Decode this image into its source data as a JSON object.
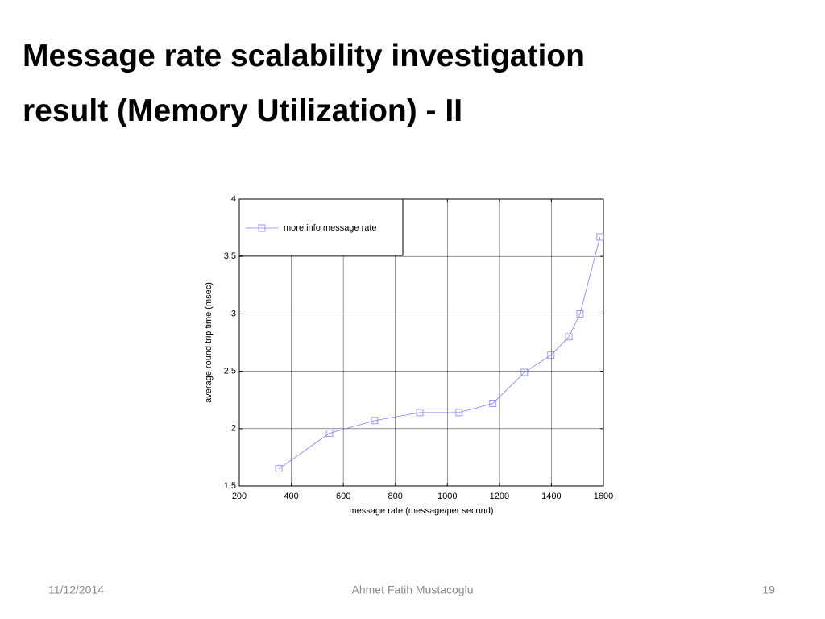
{
  "slide": {
    "title_lines": [
      "Message rate scalability investigation",
      "result (Memory Utilization) - II"
    ],
    "date": "11/12/2014",
    "author": "Ahmet Fatih Mustacoglu",
    "page": "19"
  },
  "chart_data": {
    "type": "line",
    "xlabel": "message rate (message/per second)",
    "ylabel": "average round trip time (msec)",
    "x": [
      352,
      547,
      720,
      894,
      1045,
      1175,
      1296,
      1398,
      1467,
      1510,
      1587
    ],
    "series": [
      {
        "name": "more info message rate",
        "color": "#8080ff",
        "marker": "square",
        "values": [
          1.65,
          1.96,
          2.07,
          2.14,
          2.14,
          2.22,
          2.49,
          2.64,
          2.8,
          3.0,
          3.67
        ]
      }
    ],
    "xlim": [
      200,
      1600
    ],
    "xticks": [
      200,
      400,
      600,
      800,
      1000,
      1200,
      1400,
      1600
    ],
    "ylim": [
      1.5,
      4
    ],
    "yticks": [
      1.5,
      2,
      2.5,
      3,
      3.5,
      4
    ],
    "grid": true,
    "legend": "upper left"
  }
}
